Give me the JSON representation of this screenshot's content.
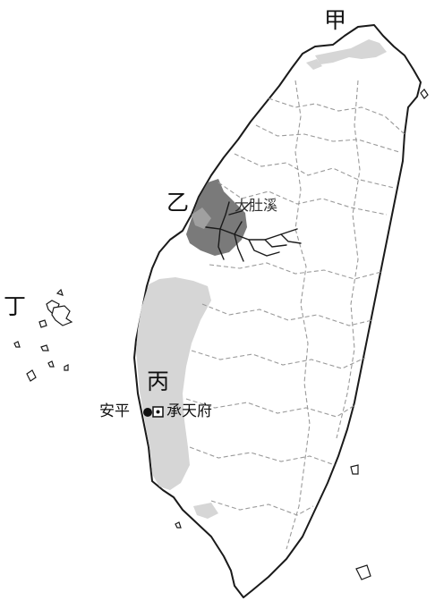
{
  "map": {
    "region_labels": {
      "jia": "甲",
      "yi": "乙",
      "bing": "丙",
      "ding": "丁"
    },
    "river_label": "大肚溪",
    "places": {
      "anping": "安平",
      "chengtianfu": "承天府"
    },
    "colors": {
      "land": "#ffffff",
      "coast": "#1a1a1a",
      "boundary": "#9a9a9a",
      "light_shade": "#d6d6d6",
      "dark_shade": "#7a7a7a",
      "river": "#1a1a1a"
    },
    "legend_symbols": {
      "anping": "filled-dot",
      "chengtianfu": "dotted-square"
    }
  }
}
